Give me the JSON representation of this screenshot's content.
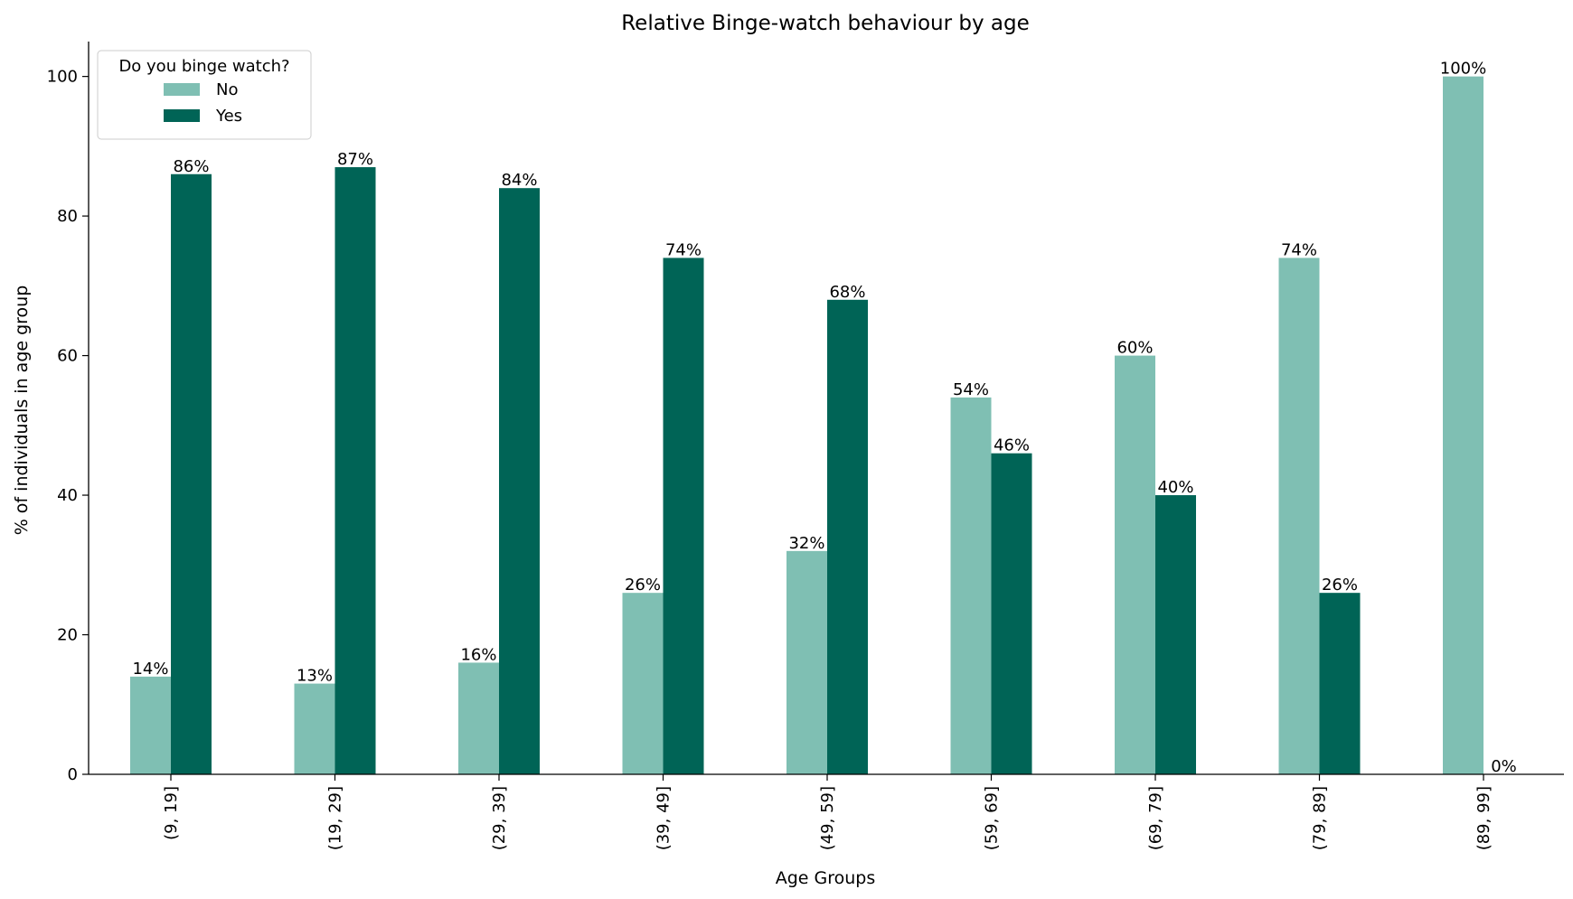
{
  "chart_data": {
    "type": "bar",
    "title": "Relative Binge-watch behaviour by age",
    "xlabel": "Age Groups",
    "ylabel": "% of individuals in age group",
    "categories": [
      "(9, 19]",
      "(19, 29]",
      "(29, 39]",
      "(39, 49]",
      "(49, 59]",
      "(59, 69]",
      "(69, 79]",
      "(79, 89]",
      "(89, 99]"
    ],
    "series": [
      {
        "name": "No",
        "color": "#7fbfb3",
        "values": [
          14,
          13,
          16,
          26,
          32,
          54,
          60,
          74,
          100
        ],
        "labels": [
          "14%",
          "13%",
          "16%",
          "26%",
          "32%",
          "54%",
          "60%",
          "74%",
          "100%"
        ]
      },
      {
        "name": "Yes",
        "color": "#006456",
        "values": [
          86,
          87,
          84,
          74,
          68,
          46,
          40,
          26,
          0
        ],
        "labels": [
          "86%",
          "87%",
          "84%",
          "74%",
          "68%",
          "46%",
          "40%",
          "26%",
          "0%"
        ]
      }
    ],
    "ylim": [
      0,
      105
    ],
    "yticks": [
      0,
      20,
      40,
      60,
      80,
      100
    ],
    "legend": {
      "title": "Do you binge watch?",
      "position": "top-left"
    },
    "grid": false
  }
}
